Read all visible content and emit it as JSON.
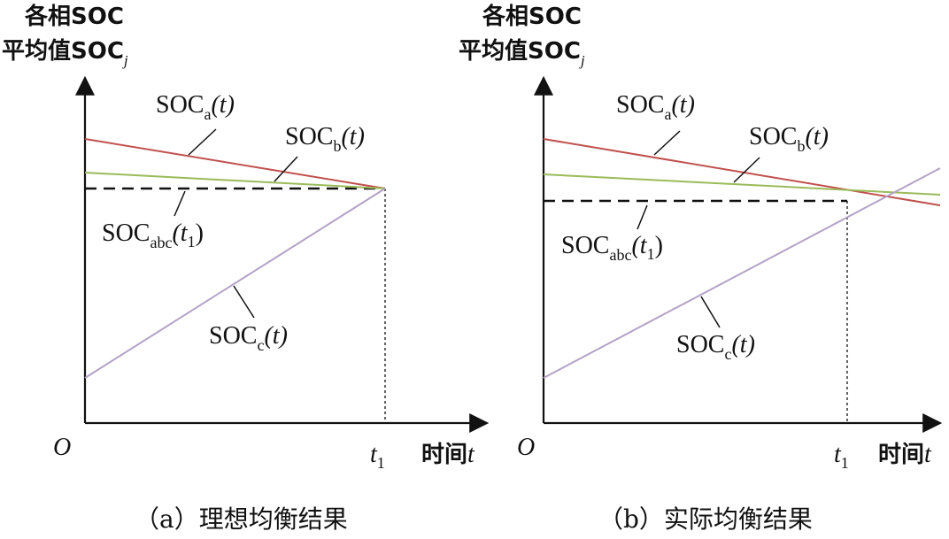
{
  "panels": [
    {
      "ylabel_line1": "各相SOC",
      "ylabel_line2_main": "平均值SOC",
      "ylabel_line2_sub": "j",
      "origin_label": "O",
      "t1_main": "t",
      "t1_sub": "1",
      "xlabel_main": "时间",
      "xlabel_var": "t",
      "caption": "（a）理想均衡结果",
      "label_a": {
        "base": "SOC",
        "sub": "a",
        "arg": "(t)"
      },
      "label_b": {
        "base": "SOC",
        "sub": "b",
        "arg": "(t)"
      },
      "label_avg": {
        "base": "SOC",
        "sub": "abc",
        "arg": "(t",
        "arg_sub": "1",
        "arg_end": ")"
      },
      "label_c": {
        "base": "SOC",
        "sub": "c",
        "arg": "(t)"
      }
    },
    {
      "ylabel_line1": "各相SOC",
      "ylabel_line2_main": "平均值SOC",
      "ylabel_line2_sub": "j",
      "origin_label": "O",
      "t1_main": "t",
      "t1_sub": "1",
      "xlabel_main": "时间",
      "xlabel_var": "t",
      "caption": "（b）实际均衡结果",
      "label_a": {
        "base": "SOC",
        "sub": "a",
        "arg": "(t)"
      },
      "label_b": {
        "base": "SOC",
        "sub": "b",
        "arg": "(t)"
      },
      "label_avg": {
        "base": "SOC",
        "sub": "abc",
        "arg": "(t",
        "arg_sub": "1",
        "arg_end": ")"
      },
      "label_c": {
        "base": "SOC",
        "sub": "c",
        "arg": "(t)"
      }
    }
  ],
  "colors": {
    "soc_a": "#c0504d",
    "soc_b": "#9bbb59",
    "soc_c": "#b3a2c7",
    "axis": "#111111"
  }
}
